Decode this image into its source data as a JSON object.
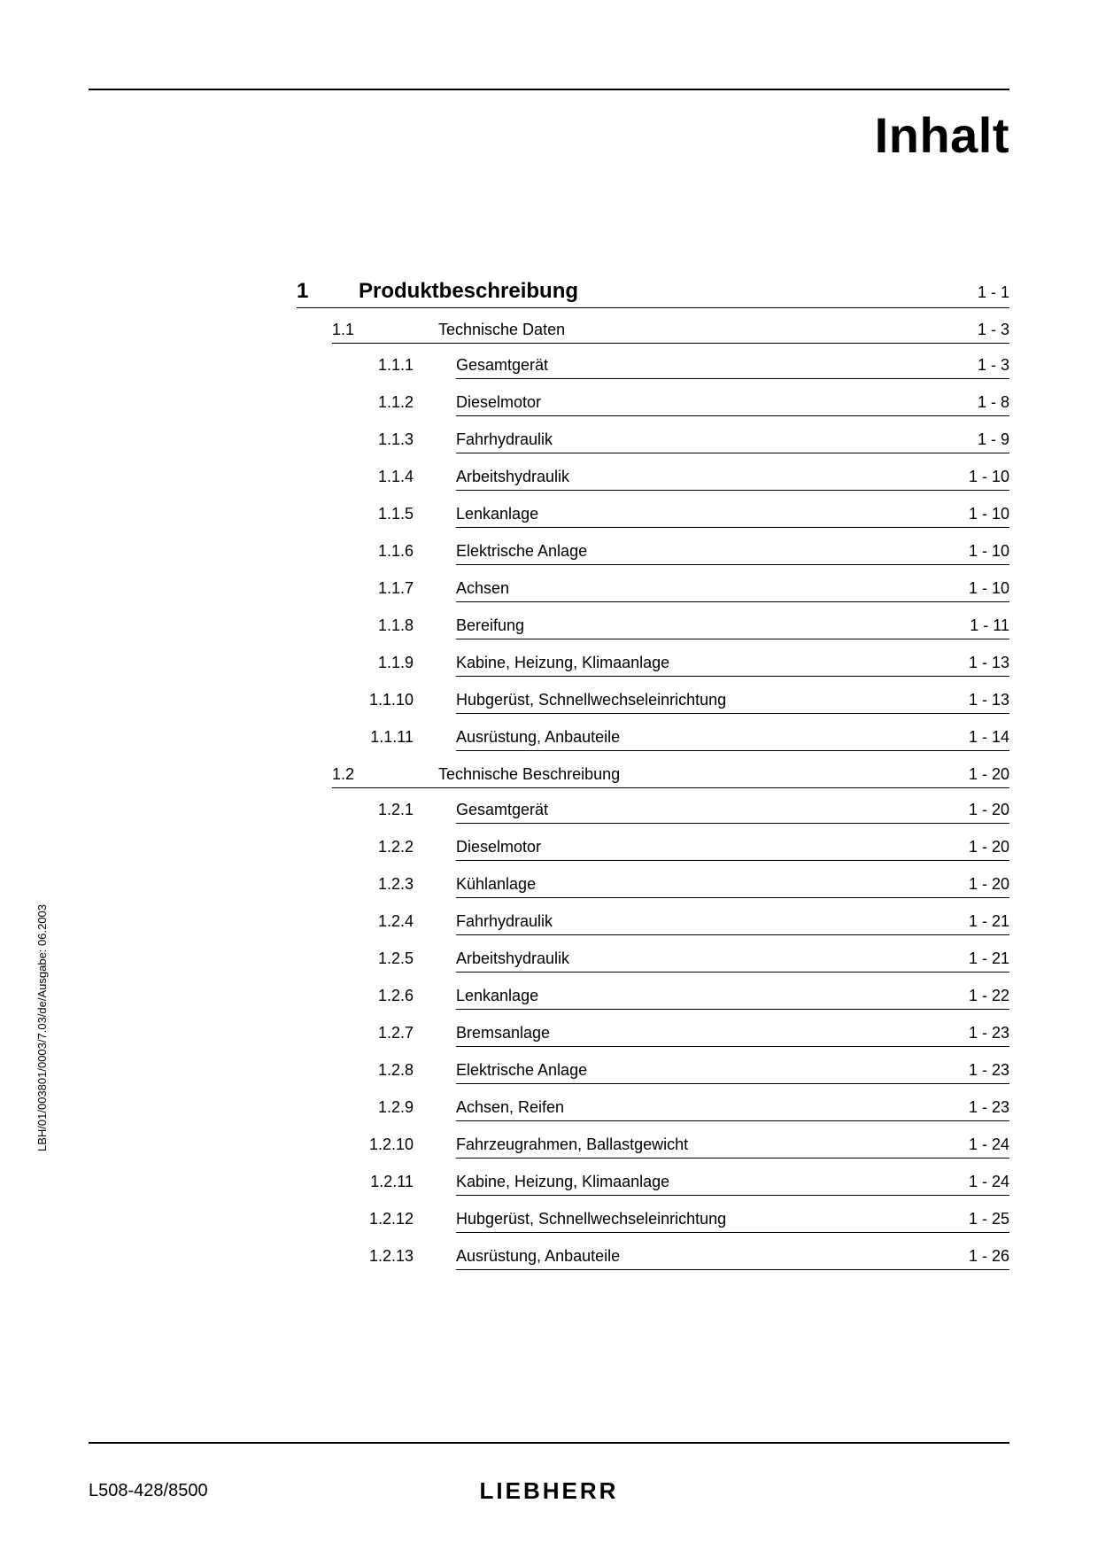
{
  "page_title": "Inhalt",
  "side_label": "LBH/01/003801/0003/7.03/de/Ausgabe: 06.2003",
  "doc_id": "L508-428/8500",
  "brand": "LIEBHERR",
  "chapter": {
    "num": "1",
    "title": "Produktbeschreibung",
    "page": "1 - 1"
  },
  "sections": [
    {
      "num": "1.1",
      "title": "Technische Daten",
      "page": "1 - 3",
      "subs": [
        {
          "num": "1.1.1",
          "title": "Gesamtgerät",
          "page": "1 - 3"
        },
        {
          "num": "1.1.2",
          "title": "Dieselmotor",
          "page": "1 - 8"
        },
        {
          "num": "1.1.3",
          "title": "Fahrhydraulik",
          "page": "1 - 9"
        },
        {
          "num": "1.1.4",
          "title": "Arbeitshydraulik",
          "page": "1 - 10"
        },
        {
          "num": "1.1.5",
          "title": "Lenkanlage",
          "page": "1 - 10"
        },
        {
          "num": "1.1.6",
          "title": "Elektrische Anlage",
          "page": "1 - 10"
        },
        {
          "num": "1.1.7",
          "title": "Achsen",
          "page": "1 - 10"
        },
        {
          "num": "1.1.8",
          "title": "Bereifung",
          "page": "1 - 11"
        },
        {
          "num": "1.1.9",
          "title": "Kabine, Heizung, Klimaanlage",
          "page": "1 - 13"
        },
        {
          "num": "1.1.10",
          "title": "Hubgerüst, Schnellwechseleinrichtung",
          "page": "1 - 13"
        },
        {
          "num": "1.1.11",
          "title": "Ausrüstung, Anbauteile",
          "page": "1 - 14"
        }
      ]
    },
    {
      "num": "1.2",
      "title": "Technische Beschreibung",
      "page": "1 - 20",
      "subs": [
        {
          "num": "1.2.1",
          "title": "Gesamtgerät",
          "page": "1 - 20"
        },
        {
          "num": "1.2.2",
          "title": "Dieselmotor",
          "page": "1 - 20"
        },
        {
          "num": "1.2.3",
          "title": "Kühlanlage",
          "page": "1 - 20"
        },
        {
          "num": "1.2.4",
          "title": "Fahrhydraulik",
          "page": "1 - 21"
        },
        {
          "num": "1.2.5",
          "title": "Arbeitshydraulik",
          "page": "1 - 21"
        },
        {
          "num": "1.2.6",
          "title": "Lenkanlage",
          "page": "1 - 22"
        },
        {
          "num": "1.2.7",
          "title": "Bremsanlage",
          "page": "1 - 23"
        },
        {
          "num": "1.2.8",
          "title": "Elektrische Anlage",
          "page": "1 - 23"
        },
        {
          "num": "1.2.9",
          "title": "Achsen, Reifen",
          "page": "1 - 23"
        },
        {
          "num": "1.2.10",
          "title": "Fahrzeugrahmen, Ballastgewicht",
          "page": "1 - 24"
        },
        {
          "num": "1.2.11",
          "title": "Kabine, Heizung, Klimaanlage",
          "page": "1 - 24"
        },
        {
          "num": "1.2.12",
          "title": "Hubgerüst, Schnellwechseleinrichtung",
          "page": "1 - 25"
        },
        {
          "num": "1.2.13",
          "title": "Ausrüstung, Anbauteile",
          "page": "1 - 26"
        }
      ]
    }
  ]
}
